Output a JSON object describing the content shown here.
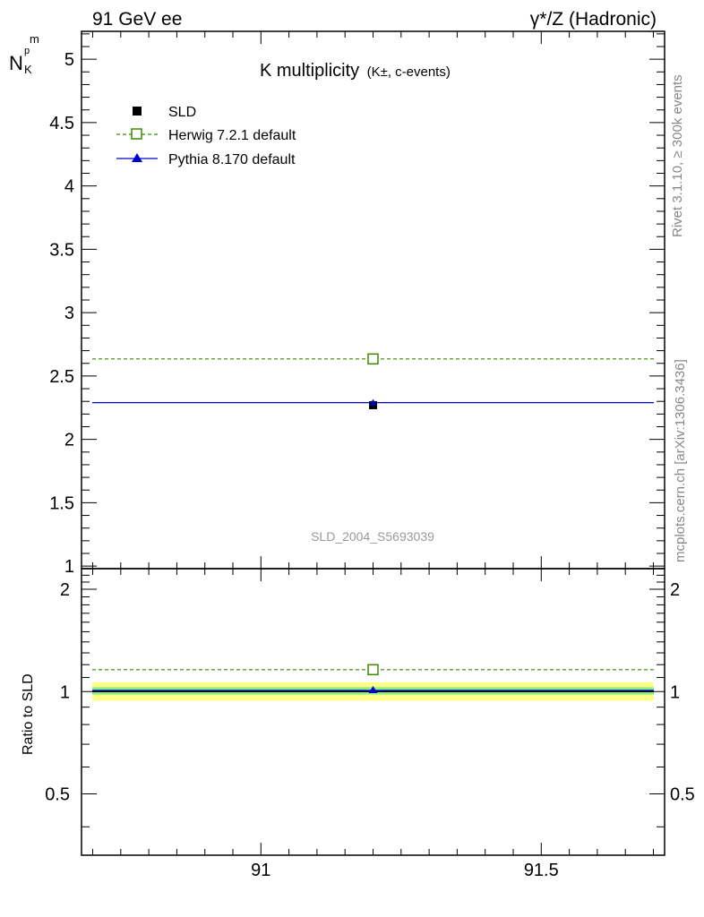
{
  "header": {
    "left": "91 GeV ee",
    "right": "γ*/Z (Hadronic)"
  },
  "side_texts": {
    "rivet": "Rivet 3.1.10, ≥ 300k events",
    "mcplots": "mcplots.cern.ch [arXiv:1306.3436]"
  },
  "chart_data": [
    {
      "panel": "main",
      "type": "scatter",
      "title_main": "K multiplicity",
      "title_sub": "(K±, c-events)",
      "ylabel": "N",
      "ylabel_sub": "K",
      "ylabel_sup": "p",
      "ylabel_sub2": "m",
      "watermark": "SLD_2004_S5693039",
      "xlim": [
        90.68,
        91.72
      ],
      "ylim": [
        0.98,
        5.22
      ],
      "yticks": [
        1,
        1.5,
        2,
        2.5,
        3,
        3.5,
        4,
        4.5,
        5
      ],
      "ytick_labels": [
        "1",
        "1.5",
        "2",
        "2.5",
        "3",
        "3.5",
        "4",
        "4.5",
        "5"
      ],
      "legend_position": "top-left",
      "series": [
        {
          "name": "SLD",
          "style": "data",
          "color": "#000000",
          "x": 91.2,
          "y": 2.27,
          "yerr": 0.03
        },
        {
          "name": "Herwig 7.2.1 default",
          "style": "dashed-open-square",
          "color": "#3a8a00",
          "x": 91.2,
          "y": 2.635,
          "xrange": [
            90.68,
            91.72
          ]
        },
        {
          "name": "Pythia 8.170 default",
          "style": "solid-triangle",
          "color": "#0000cc",
          "x": 91.2,
          "y": 2.29,
          "xrange": [
            90.68,
            91.72
          ]
        }
      ]
    },
    {
      "panel": "ratio",
      "type": "scatter",
      "ylabel": "Ratio to SLD",
      "xlim": [
        90.68,
        91.72
      ],
      "ylim": [
        0.33,
        2.3
      ],
      "yticks": [
        0.5,
        1,
        2
      ],
      "ytick_labels": [
        "0.5",
        "1",
        "2"
      ],
      "xticks": [
        91,
        91.5
      ],
      "xtick_labels": [
        "91",
        "91.5"
      ],
      "bands": [
        {
          "name": "stat+syst",
          "low": 0.94,
          "high": 1.065,
          "color": "#ffff88"
        },
        {
          "name": "stat",
          "low": 0.98,
          "high": 1.03,
          "color": "#88ee88"
        }
      ],
      "series": [
        {
          "name": "Herwig 7.2.1 default",
          "style": "dashed-open-square",
          "color": "#3a8a00",
          "x": 91.2,
          "y": 1.16
        },
        {
          "name": "Pythia 8.170 default",
          "style": "solid-triangle",
          "color": "#0000cc",
          "x": 91.2,
          "y": 1.008
        }
      ]
    }
  ]
}
